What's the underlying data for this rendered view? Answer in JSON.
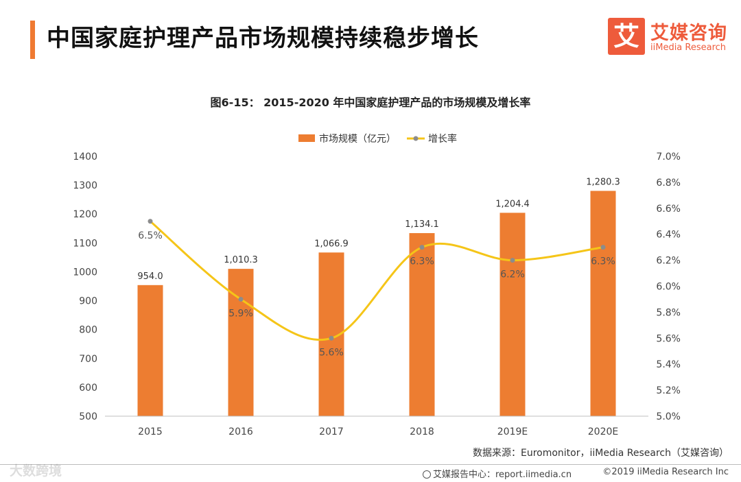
{
  "header": {
    "title": "中国家庭护理产品市场规模持续稳步增长"
  },
  "logo": {
    "mark": "艾",
    "name_cn": "艾媒咨询",
    "name_en": "iiMedia Research"
  },
  "chart_data": {
    "type": "bar+line",
    "title": "图6-15：  2015-2020 年中国家庭护理产品的市场规模及增长率",
    "categories": [
      "2015",
      "2016",
      "2017",
      "2018",
      "2019E",
      "2020E"
    ],
    "series": [
      {
        "name": "市场规模（亿元）",
        "kind": "bar",
        "axis": "left",
        "values": [
          954.0,
          1010.3,
          1066.9,
          1134.1,
          1204.4,
          1280.3
        ],
        "labels": [
          "954.0",
          "1,010.3",
          "1,066.9",
          "1,134.1",
          "1,204.4",
          "1,280.3"
        ],
        "color": "#ed7d31"
      },
      {
        "name": "增长率",
        "kind": "line",
        "axis": "right",
        "values": [
          6.5,
          5.9,
          5.6,
          6.3,
          6.2,
          6.3
        ],
        "labels": [
          "6.5%",
          "5.9%",
          "5.6%",
          "6.3%",
          "6.2%",
          "6.3%"
        ],
        "color": "#f5c518",
        "marker_color": "#8c8c8c"
      }
    ],
    "y_left": {
      "range": [
        500,
        1400
      ],
      "ticks": [
        "500",
        "600",
        "700",
        "800",
        "900",
        "1000",
        "1100",
        "1200",
        "1300",
        "1400"
      ]
    },
    "y_right": {
      "range": [
        5.0,
        7.0
      ],
      "ticks": [
        "5.0%",
        "5.2%",
        "5.4%",
        "5.6%",
        "5.8%",
        "6.0%",
        "6.2%",
        "6.4%",
        "6.6%",
        "6.8%",
        "7.0%"
      ]
    },
    "legend_position": "top-center",
    "grid": false
  },
  "source": "数据来源：Euromonitor，iiMedia Research（艾媒咨询）",
  "footer": {
    "center_label": "艾媒报告中心：report.iimedia.cn",
    "copyright": "©2019  iiMedia Research  Inc"
  },
  "watermark": "大数跨境"
}
